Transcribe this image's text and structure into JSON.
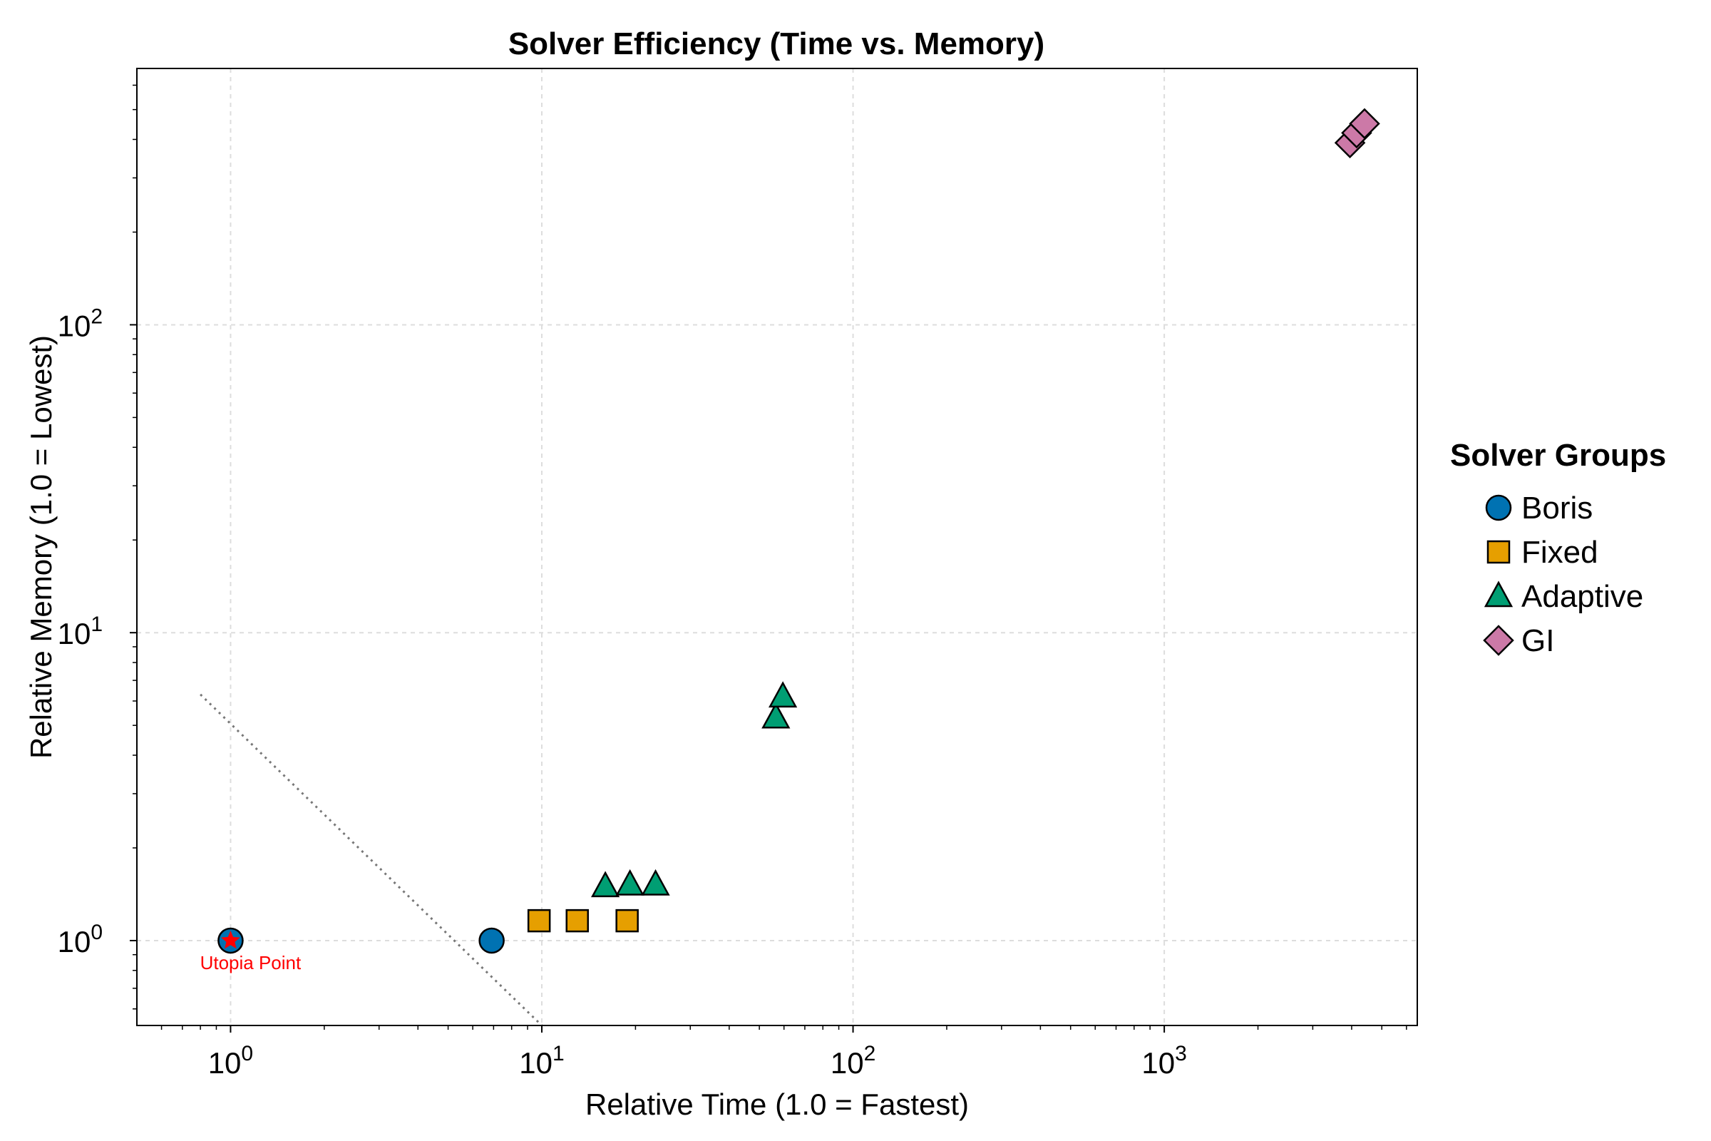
{
  "chart_data": {
    "type": "scatter",
    "title": "Solver Efficiency (Time vs. Memory)",
    "xlabel": "Relative Time (1.0 = Fastest)",
    "ylabel": "Relative Memory (1.0 = Lowest)",
    "x_scale": "log",
    "y_scale": "log",
    "xlim": [
      0.5,
      6500
    ],
    "ylim": [
      0.53,
      680
    ],
    "x_ticks": [
      {
        "value": 1,
        "base": "10",
        "exp": "0"
      },
      {
        "value": 10,
        "base": "10",
        "exp": "1"
      },
      {
        "value": 100,
        "base": "10",
        "exp": "2"
      },
      {
        "value": 1000,
        "base": "10",
        "exp": "3"
      }
    ],
    "y_ticks": [
      {
        "value": 1,
        "base": "10",
        "exp": "0"
      },
      {
        "value": 10,
        "base": "10",
        "exp": "1"
      },
      {
        "value": 100,
        "base": "10",
        "exp": "2"
      }
    ],
    "grid": true,
    "legend": {
      "title": "Solver Groups",
      "placement": "right"
    },
    "series": [
      {
        "name": "Boris",
        "marker": "circle",
        "color": "#0072B2",
        "points": [
          {
            "x": 1.0,
            "y": 1.0
          },
          {
            "x": 6.9,
            "y": 1.0
          }
        ]
      },
      {
        "name": "Fixed",
        "marker": "square",
        "color": "#E69F00",
        "points": [
          {
            "x": 9.8,
            "y": 1.16
          },
          {
            "x": 13.0,
            "y": 1.16
          },
          {
            "x": 18.8,
            "y": 1.16
          }
        ]
      },
      {
        "name": "Adaptive",
        "marker": "triangle",
        "color": "#009E73",
        "points": [
          {
            "x": 16.0,
            "y": 1.5
          },
          {
            "x": 19.2,
            "y": 1.52
          },
          {
            "x": 23.2,
            "y": 1.52
          },
          {
            "x": 56.5,
            "y": 5.3
          },
          {
            "x": 59.5,
            "y": 6.2
          }
        ]
      },
      {
        "name": "GI",
        "marker": "diamond",
        "color": "#CC79A7",
        "points": [
          {
            "x": 3950,
            "y": 390
          },
          {
            "x": 4150,
            "y": 420
          },
          {
            "x": 4400,
            "y": 450
          }
        ]
      }
    ],
    "annotations": [
      {
        "text": "Utopia Point",
        "x": 1.0,
        "y": 1.0,
        "color": "#FF0000",
        "marker": "star"
      }
    ],
    "guide_line": {
      "style": "dotted",
      "color": "#777777",
      "from": {
        "x": 0.8,
        "y": 6.3
      },
      "to": {
        "x": 10,
        "y": 0.53
      }
    }
  }
}
